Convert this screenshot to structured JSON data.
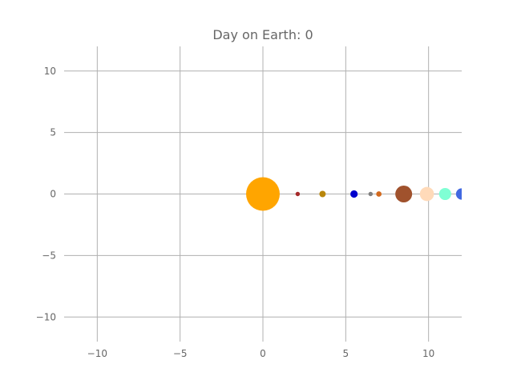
{
  "chart_data": {
    "type": "scatter",
    "title": "Day on Earth: 0",
    "xlabel": "",
    "ylabel": "",
    "xlim": [
      -12,
      12
    ],
    "ylim": [
      -12,
      12
    ],
    "x_ticks": [
      -10,
      -5,
      0,
      5,
      10
    ],
    "y_ticks": [
      -10,
      -5,
      0,
      5,
      10
    ],
    "x_tick_labels": [
      "−10",
      "−5",
      "0",
      "5",
      "10"
    ],
    "y_tick_labels": [
      "10",
      "5",
      "0",
      "−5",
      "−10"
    ],
    "grid": true,
    "points": [
      {
        "x": 0.0,
        "y": 0,
        "size": 1.0,
        "color": "#ffa500"
      },
      {
        "x": 2.1,
        "y": 0,
        "size": 0.13,
        "color": "#a52a2a"
      },
      {
        "x": 3.6,
        "y": 0,
        "size": 0.19,
        "color": "#b8860b"
      },
      {
        "x": 5.5,
        "y": 0,
        "size": 0.22,
        "color": "#0000cd"
      },
      {
        "x": 6.5,
        "y": 0,
        "size": 0.13,
        "color": "#808080"
      },
      {
        "x": 7.0,
        "y": 0,
        "size": 0.16,
        "color": "#d2691e"
      },
      {
        "x": 8.5,
        "y": 0,
        "size": 0.5,
        "color": "#a0522d"
      },
      {
        "x": 9.9,
        "y": 0,
        "size": 0.42,
        "color": "#ffdab9"
      },
      {
        "x": 11.0,
        "y": 0,
        "size": 0.36,
        "color": "#7fffd4"
      },
      {
        "x": 12.0,
        "y": 0,
        "size": 0.34,
        "color": "#4169e1"
      }
    ]
  }
}
